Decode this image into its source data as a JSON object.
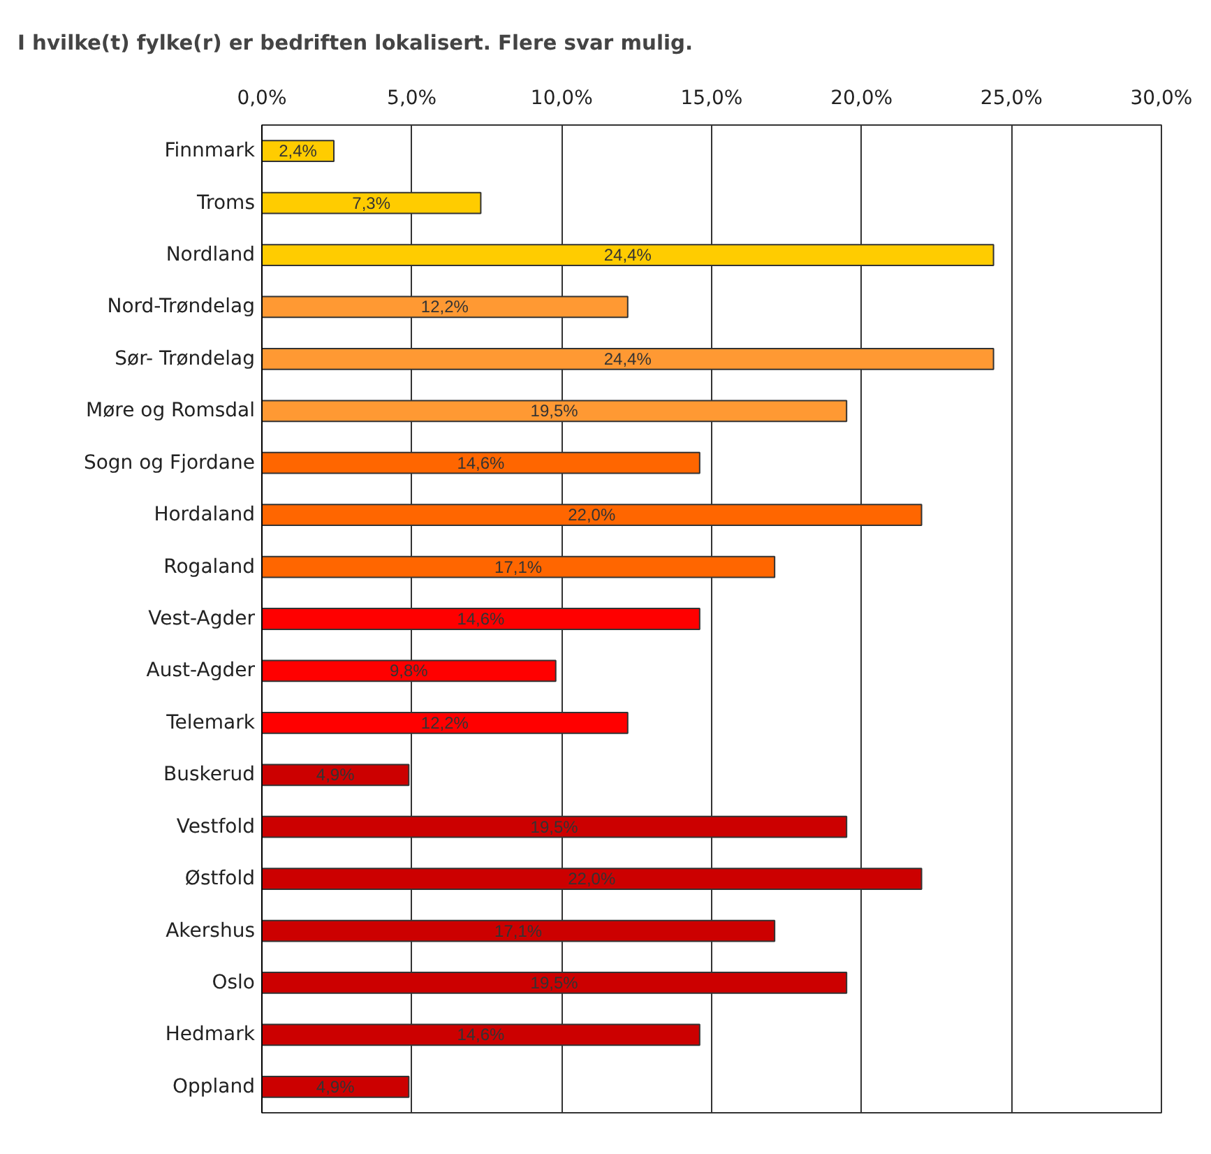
{
  "chart_data": {
    "type": "bar",
    "orientation": "horizontal",
    "title": "I hvilke(t) fylke(r) er bedriften lokalisert. Flere svar mulig.",
    "categories": [
      "Finnmark",
      "Troms",
      "Nordland",
      "Nord-Trøndelag",
      "Sør- Trøndelag",
      "Møre og Romsdal",
      "Sogn og Fjordane",
      "Hordaland",
      "Rogaland",
      "Vest-Agder",
      "Aust-Agder",
      "Telemark",
      "Buskerud",
      "Vestfold",
      "Østfold",
      "Akershus",
      "Oslo",
      "Hedmark",
      "Oppland"
    ],
    "values": [
      2.4,
      7.3,
      24.4,
      12.2,
      24.4,
      19.5,
      14.6,
      22.0,
      17.1,
      14.6,
      9.8,
      12.2,
      4.9,
      19.5,
      22.0,
      17.1,
      19.5,
      14.6,
      4.9
    ],
    "value_labels": [
      "2,4%",
      "7,3%",
      "24,4%",
      "12,2%",
      "24,4%",
      "19,5%",
      "14,6%",
      "22,0%",
      "17,1%",
      "14,6%",
      "9,8%",
      "12,2%",
      "4,9%",
      "19,5%",
      "22,0%",
      "17,1%",
      "19,5%",
      "14,6%",
      "4,9%"
    ],
    "colors": [
      "#ffcc00",
      "#ffcc00",
      "#ffcc00",
      "#ff9933",
      "#ff9933",
      "#ff9933",
      "#ff6600",
      "#ff6600",
      "#ff6600",
      "#ff0000",
      "#ff0000",
      "#ff0000",
      "#cc0000",
      "#cc0000",
      "#cc0000",
      "#cc0000",
      "#cc0000",
      "#cc0000",
      "#cc0000"
    ],
    "xlim": [
      0,
      30
    ],
    "xticks": [
      {
        "value": 0,
        "label": "0,0%"
      },
      {
        "value": 5,
        "label": "5,0%"
      },
      {
        "value": 10,
        "label": "10,0%"
      },
      {
        "value": 15,
        "label": "15,0%"
      },
      {
        "value": 20,
        "label": "20,0%"
      },
      {
        "value": 25,
        "label": "25,0%"
      },
      {
        "value": 30,
        "label": "30,0%"
      }
    ],
    "grid": "x"
  }
}
